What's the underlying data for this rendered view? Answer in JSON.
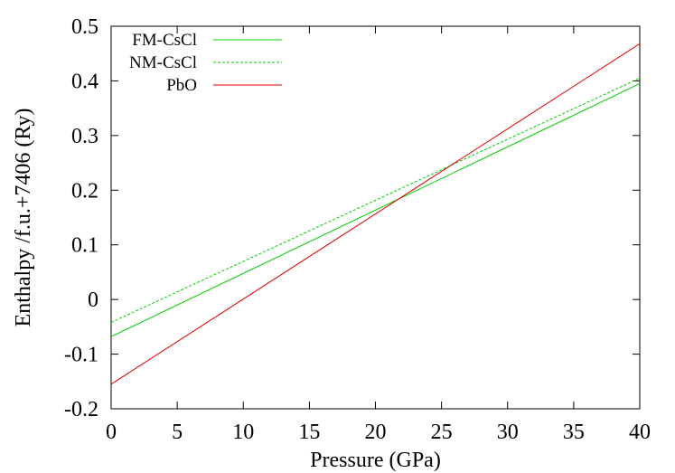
{
  "chart_data": {
    "type": "line",
    "title": "",
    "xlabel": "Pressure (GPa)",
    "ylabel": "Enthalpy /f.u.+7406 (Ry)",
    "xlim": [
      0,
      40
    ],
    "ylim": [
      -0.2,
      0.5
    ],
    "x_ticks": [
      0,
      5,
      10,
      15,
      20,
      25,
      30,
      35,
      40
    ],
    "y_ticks": [
      -0.2,
      -0.1,
      0,
      0.1,
      0.2,
      0.3,
      0.4,
      0.5
    ],
    "x_tick_labels": [
      "0",
      "5",
      "10",
      "15",
      "20",
      "25",
      "30",
      "35",
      "40"
    ],
    "y_tick_labels": [
      "-0.2",
      "-0.1",
      "0",
      "0.1",
      "0.2",
      "0.3",
      "0.4",
      "0.5"
    ],
    "grid": false,
    "legend_position": "top-left",
    "series": [
      {
        "name": "FM-CsCl",
        "x": [
          0,
          40
        ],
        "y": [
          -0.068,
          0.395
        ],
        "color": "#00cc00",
        "dash": "solid"
      },
      {
        "name": "NM-CsCl",
        "x": [
          0,
          40
        ],
        "y": [
          -0.042,
          0.405
        ],
        "color": "#00cc00",
        "dash": "dashed"
      },
      {
        "name": "PbO",
        "x": [
          0,
          40
        ],
        "y": [
          -0.155,
          0.468
        ],
        "color": "#e00000",
        "dash": "solid"
      }
    ]
  }
}
